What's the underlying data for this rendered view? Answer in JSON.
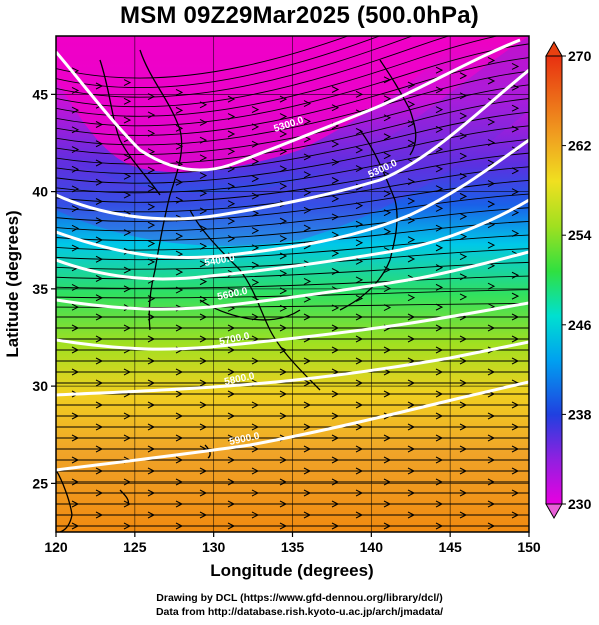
{
  "title": "MSM 09Z29Mar2025 (500.0hPa)",
  "x_axis": {
    "label": "Longitude (degrees)",
    "ticks": [
      "120",
      "125",
      "130",
      "135",
      "140",
      "145",
      "150"
    ]
  },
  "y_axis": {
    "label": "Latitude  (degrees)",
    "ticks": [
      "25",
      "30",
      "35",
      "40",
      "45"
    ]
  },
  "colorbar": {
    "ticks": [
      "230",
      "238",
      "246",
      "254",
      "262",
      "270"
    ],
    "min": 230,
    "max": 270
  },
  "contour_labels": [
    "5300.0",
    "5300.0",
    "5400.0",
    "5600.0",
    "5700.0",
    "5800.0",
    "5900.0"
  ],
  "credits": {
    "line1": "Drawing by DCL (https://www.gfd-dennou.org/library/dcl/)",
    "line2": "Data from http://database.rish.kyoto-u.ac.jp/arch/jmadata/"
  },
  "colors": {
    "cold": "#e800c8",
    "purple": "#8a2ae0",
    "blue": "#1a4ad8",
    "cyan": "#00d8e0",
    "green": "#30e030",
    "yellow": "#f0e020",
    "orange": "#f0a020",
    "red": "#e84010"
  },
  "chart_data": {
    "type": "map",
    "xlim": [
      120,
      150
    ],
    "ylim": [
      22.5,
      48
    ],
    "x_ticks": [
      120,
      125,
      130,
      135,
      140,
      145,
      150
    ],
    "y_ticks": [
      25,
      30,
      35,
      40,
      45
    ],
    "colorbar_range": [
      230,
      270
    ],
    "contour_levels": [
      5300,
      5400,
      5600,
      5700,
      5800,
      5900
    ],
    "grid": true
  }
}
